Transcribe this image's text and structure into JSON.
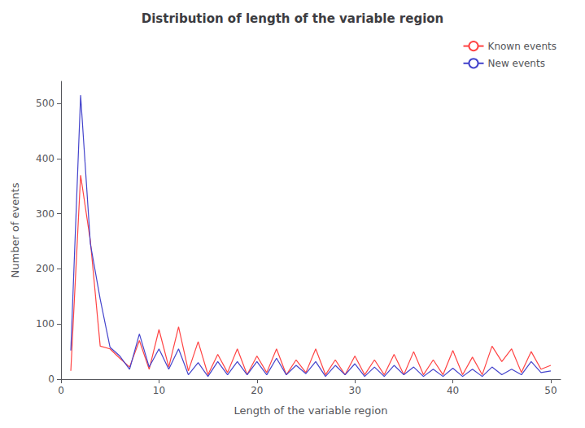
{
  "chart_data": {
    "type": "line",
    "title": "Distribution of length of the variable region",
    "xlabel": "Length of the variable region",
    "ylabel": "Number of events",
    "x": [
      1,
      2,
      3,
      4,
      5,
      6,
      7,
      8,
      9,
      10,
      11,
      12,
      13,
      14,
      15,
      16,
      17,
      18,
      19,
      20,
      21,
      22,
      23,
      24,
      25,
      26,
      27,
      28,
      29,
      30,
      31,
      32,
      33,
      34,
      35,
      36,
      37,
      38,
      39,
      40,
      41,
      42,
      43,
      44,
      45,
      46,
      47,
      48,
      49,
      50
    ],
    "series": [
      {
        "name": "Known events",
        "color": "#FF4444",
        "values": [
          15,
          370,
          250,
          60,
          55,
          38,
          22,
          70,
          18,
          90,
          22,
          95,
          15,
          68,
          8,
          45,
          12,
          55,
          8,
          42,
          12,
          55,
          8,
          35,
          12,
          55,
          8,
          35,
          8,
          42,
          8,
          35,
          8,
          45,
          8,
          50,
          8,
          35,
          8,
          52,
          8,
          40,
          8,
          60,
          32,
          55,
          12,
          50,
          18,
          25
        ]
      },
      {
        "name": "New events",
        "color": "#4444CC",
        "values": [
          52,
          515,
          245,
          145,
          58,
          42,
          18,
          82,
          22,
          55,
          18,
          55,
          8,
          30,
          5,
          32,
          8,
          32,
          8,
          32,
          8,
          38,
          8,
          25,
          10,
          32,
          5,
          25,
          8,
          28,
          5,
          22,
          5,
          25,
          8,
          22,
          5,
          18,
          5,
          20,
          5,
          18,
          5,
          22,
          8,
          18,
          8,
          32,
          12,
          15
        ]
      }
    ],
    "xlim": [
      0,
      51
    ],
    "ylim": [
      0,
      540
    ],
    "xticks": [
      0,
      10,
      20,
      30,
      40,
      50
    ],
    "yticks": [
      0,
      100,
      200,
      300,
      400,
      500
    ],
    "grid": false,
    "legend": "upper right"
  }
}
